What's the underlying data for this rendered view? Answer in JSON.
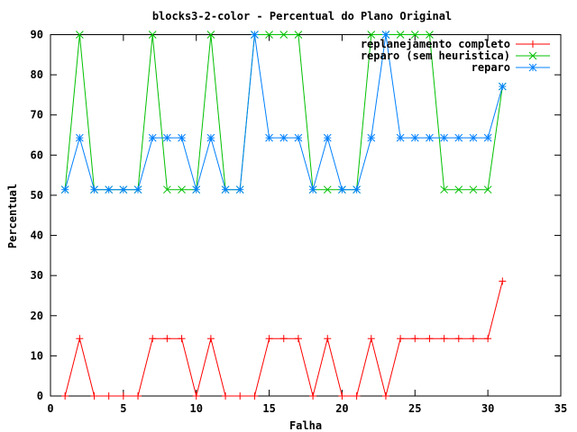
{
  "chart_data": {
    "type": "line",
    "title": "blocks3-2-color - Percentual do Plano Original",
    "xlabel": "Falha",
    "ylabel": "Percentual",
    "xlim": [
      0,
      35
    ],
    "ylim": [
      0,
      90
    ],
    "x_ticks": [
      "0",
      "5",
      "10",
      "15",
      "20",
      "25",
      "30",
      "35"
    ],
    "y_ticks": [
      "0",
      "10",
      "20",
      "30",
      "40",
      "50",
      "60",
      "70",
      "80",
      "90"
    ],
    "legend_position": "top-right",
    "grid": false,
    "x": [
      1,
      2,
      3,
      4,
      5,
      6,
      7,
      8,
      9,
      10,
      11,
      12,
      13,
      14,
      15,
      16,
      17,
      18,
      19,
      20,
      21,
      22,
      23,
      24,
      25,
      26,
      27,
      28,
      29,
      30,
      31
    ],
    "series": [
      {
        "name": "replanejamento completo",
        "color": "#ff0000",
        "marker": "plus",
        "values": [
          0,
          14.3,
          0,
          0,
          0,
          0,
          14.3,
          14.3,
          14.3,
          0,
          14.3,
          0,
          0,
          0,
          14.3,
          14.3,
          14.3,
          0,
          14.3,
          0,
          0,
          14.3,
          0,
          14.3,
          14.3,
          14.3,
          14.3,
          14.3,
          14.3,
          14.3,
          28.6
        ]
      },
      {
        "name": "reparo (sem heuristica)",
        "color": "#00c000",
        "marker": "cross",
        "values": [
          51.4,
          90,
          51.4,
          51.4,
          51.4,
          51.4,
          90,
          51.4,
          51.4,
          51.4,
          90,
          51.4,
          51.4,
          90,
          90,
          90,
          90,
          51.4,
          51.4,
          51.4,
          51.4,
          90,
          90,
          90,
          90,
          90,
          51.4,
          51.4,
          51.4,
          51.4,
          77.1
        ]
      },
      {
        "name": "reparo",
        "color": "#0080ff",
        "marker": "star",
        "values": [
          51.4,
          64.3,
          51.4,
          51.4,
          51.4,
          51.4,
          64.3,
          64.3,
          64.3,
          51.4,
          64.3,
          51.4,
          51.4,
          90,
          64.3,
          64.3,
          64.3,
          51.4,
          64.3,
          51.4,
          51.4,
          64.3,
          90,
          64.3,
          64.3,
          64.3,
          64.3,
          64.3,
          64.3,
          64.3,
          77.1
        ]
      }
    ]
  }
}
